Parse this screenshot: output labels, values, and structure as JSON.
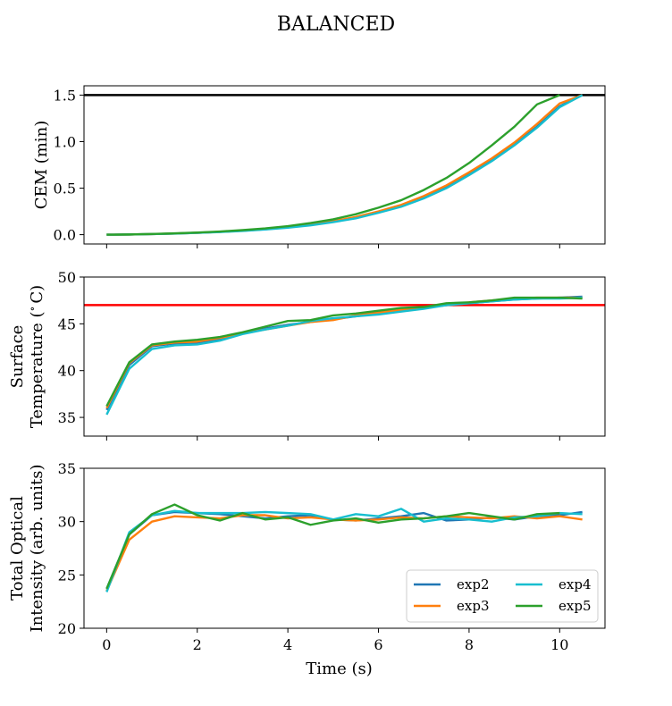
{
  "figure": {
    "title": "BALANCED"
  },
  "chart_data": [
    {
      "type": "line",
      "ylabel": "CEM (min)",
      "xlim": [
        -0.5,
        11
      ],
      "ylim": [
        -0.1,
        1.6
      ],
      "yticks": [
        0.0,
        0.5,
        1.0,
        1.5
      ],
      "ytick_labels": [
        "0.0",
        "0.5",
        "1.0",
        "1.5"
      ],
      "xticks": [
        0,
        2,
        4,
        6,
        8,
        10
      ],
      "grid": false,
      "hline": {
        "y": 1.5,
        "color": "#000000"
      },
      "series": [
        {
          "name": "exp2",
          "color": "#1f77b4",
          "x": [
            0,
            0.5,
            1,
            1.5,
            2,
            2.5,
            3,
            3.5,
            4,
            4.5,
            5,
            5.5,
            6,
            6.5,
            7,
            7.5,
            8,
            8.5,
            9,
            9.5,
            10,
            10.5
          ],
          "y": [
            0,
            0.002,
            0.006,
            0.012,
            0.02,
            0.03,
            0.042,
            0.058,
            0.08,
            0.105,
            0.14,
            0.18,
            0.24,
            0.31,
            0.4,
            0.51,
            0.65,
            0.8,
            0.97,
            1.16,
            1.38,
            1.5
          ]
        },
        {
          "name": "exp3",
          "color": "#ff7f0e",
          "x": [
            0,
            0.5,
            1,
            1.5,
            2,
            2.5,
            3,
            3.5,
            4,
            4.5,
            5,
            5.5,
            6,
            6.5,
            7,
            7.5,
            8,
            8.5,
            9,
            9.5,
            10,
            10.5
          ],
          "y": [
            0,
            0.002,
            0.006,
            0.012,
            0.02,
            0.03,
            0.043,
            0.06,
            0.082,
            0.11,
            0.145,
            0.19,
            0.25,
            0.32,
            0.415,
            0.53,
            0.67,
            0.82,
            0.99,
            1.19,
            1.41,
            1.5
          ]
        },
        {
          "name": "exp4",
          "color": "#17becf",
          "x": [
            0,
            0.5,
            1,
            1.5,
            2,
            2.5,
            3,
            3.5,
            4,
            4.5,
            5,
            5.5,
            6,
            6.5,
            7,
            7.5,
            8,
            8.5,
            9,
            9.5,
            10,
            10.5
          ],
          "y": [
            0,
            0.002,
            0.006,
            0.011,
            0.019,
            0.028,
            0.04,
            0.055,
            0.075,
            0.1,
            0.135,
            0.175,
            0.235,
            0.3,
            0.39,
            0.5,
            0.64,
            0.79,
            0.96,
            1.15,
            1.37,
            1.5
          ]
        },
        {
          "name": "exp5",
          "color": "#2ca02c",
          "x": [
            0,
            0.5,
            1,
            1.5,
            2,
            2.5,
            3,
            3.5,
            4,
            4.5,
            5,
            5.5,
            6,
            6.5,
            7,
            7.5,
            8,
            8.5,
            9,
            9.5,
            10
          ],
          "y": [
            0,
            0.002,
            0.007,
            0.014,
            0.023,
            0.034,
            0.049,
            0.067,
            0.092,
            0.125,
            0.165,
            0.22,
            0.29,
            0.37,
            0.48,
            0.61,
            0.77,
            0.96,
            1.16,
            1.4,
            1.5
          ]
        }
      ]
    },
    {
      "type": "line",
      "ylabel": "Surface\nTemperature ($^\\circ$C)",
      "xlim": [
        -0.5,
        11
      ],
      "ylim": [
        33,
        50
      ],
      "yticks": [
        35,
        40,
        45,
        50
      ],
      "ytick_labels": [
        "35",
        "40",
        "45",
        "50"
      ],
      "xticks": [
        0,
        2,
        4,
        6,
        8,
        10
      ],
      "grid": false,
      "hline": {
        "y": 47,
        "color": "#ff0000"
      },
      "series": [
        {
          "name": "exp2",
          "color": "#1f77b4",
          "x": [
            0,
            0.5,
            1,
            1.5,
            2,
            2.5,
            3,
            3.5,
            4,
            4.5,
            5,
            5.5,
            6,
            6.5,
            7,
            7.5,
            8,
            8.5,
            9,
            9.5,
            10,
            10.5
          ],
          "y": [
            35.8,
            40.6,
            42.6,
            42.9,
            43.0,
            43.4,
            44.0,
            44.5,
            44.9,
            45.2,
            45.5,
            45.8,
            46.1,
            46.4,
            46.7,
            47.0,
            47.2,
            47.4,
            47.6,
            47.7,
            47.8,
            47.9
          ]
        },
        {
          "name": "exp3",
          "color": "#ff7f0e",
          "x": [
            0,
            0.5,
            1,
            1.5,
            2,
            2.5,
            3,
            3.5,
            4,
            4.5,
            5,
            5.5,
            6,
            6.5,
            7,
            7.5,
            8,
            8.5,
            9,
            9.5,
            10,
            10.5
          ],
          "y": [
            36.0,
            40.8,
            42.7,
            43.0,
            43.1,
            43.5,
            44.0,
            44.4,
            44.8,
            45.2,
            45.4,
            45.9,
            46.2,
            46.5,
            46.8,
            47.0,
            47.3,
            47.5,
            47.7,
            47.8,
            47.8,
            47.8
          ]
        },
        {
          "name": "exp4",
          "color": "#17becf",
          "x": [
            0,
            0.5,
            1,
            1.5,
            2,
            2.5,
            3,
            3.5,
            4,
            4.5,
            5,
            5.5,
            6,
            6.5,
            7,
            7.5,
            8,
            8.5,
            9,
            9.5,
            10,
            10.5
          ],
          "y": [
            35.3,
            40.2,
            42.3,
            42.7,
            42.8,
            43.2,
            43.9,
            44.4,
            44.8,
            45.3,
            45.6,
            45.8,
            46.0,
            46.3,
            46.6,
            47.0,
            47.2,
            47.4,
            47.6,
            47.7,
            47.7,
            47.8
          ]
        },
        {
          "name": "exp5",
          "color": "#2ca02c",
          "x": [
            0,
            0.5,
            1,
            1.5,
            2,
            2.5,
            3,
            3.5,
            4,
            4.5,
            5,
            5.5,
            6,
            6.5,
            7,
            7.5,
            8,
            8.5,
            9,
            9.5,
            10,
            10.5
          ],
          "y": [
            36.2,
            40.9,
            42.8,
            43.1,
            43.3,
            43.6,
            44.1,
            44.7,
            45.3,
            45.4,
            45.9,
            46.1,
            46.4,
            46.7,
            46.8,
            47.2,
            47.3,
            47.5,
            47.8,
            47.8,
            47.8,
            47.7
          ]
        }
      ]
    },
    {
      "type": "line",
      "ylabel": "Total Optical\nIntensity (arb. units)",
      "xlabel": "Time (s)",
      "xlim": [
        -0.5,
        11
      ],
      "ylim": [
        20,
        35
      ],
      "yticks": [
        20,
        25,
        30,
        35
      ],
      "ytick_labels": [
        "20",
        "25",
        "30",
        "35"
      ],
      "xticks": [
        0,
        2,
        4,
        6,
        8,
        10
      ],
      "xtick_labels": [
        "0",
        "2",
        "4",
        "6",
        "8",
        "10"
      ],
      "grid": false,
      "legend": {
        "placement": "lower-right",
        "columns": 2
      },
      "series": [
        {
          "name": "exp2",
          "color": "#1f77b4",
          "x": [
            0,
            0.5,
            1,
            1.5,
            2,
            2.5,
            3,
            3.5,
            4,
            4.5,
            5,
            5.5,
            6,
            6.5,
            7,
            7.5,
            8,
            8.5,
            9,
            9.5,
            10,
            10.5
          ],
          "y": [
            23.7,
            28.8,
            30.6,
            30.9,
            30.8,
            30.7,
            30.5,
            30.3,
            30.5,
            30.6,
            30.2,
            30.1,
            30.3,
            30.5,
            30.8,
            30.1,
            30.2,
            30.4,
            30.2,
            30.5,
            30.6,
            30.9
          ]
        },
        {
          "name": "exp3",
          "color": "#ff7f0e",
          "x": [
            0,
            0.5,
            1,
            1.5,
            2,
            2.5,
            3,
            3.5,
            4,
            4.5,
            5,
            5.5,
            6,
            6.5,
            7,
            7.5,
            8,
            8.5,
            9,
            9.5,
            10,
            10.5
          ],
          "y": [
            23.5,
            28.3,
            30.0,
            30.5,
            30.4,
            30.3,
            30.6,
            30.6,
            30.3,
            30.4,
            30.2,
            30.1,
            30.2,
            30.4,
            30.3,
            30.5,
            30.4,
            30.3,
            30.5,
            30.3,
            30.5,
            30.2
          ]
        },
        {
          "name": "exp4",
          "color": "#17becf",
          "x": [
            0,
            0.5,
            1,
            1.5,
            2,
            2.5,
            3,
            3.5,
            4,
            4.5,
            5,
            5.5,
            6,
            6.5,
            7,
            7.5,
            8,
            8.5,
            9,
            9.5,
            10,
            10.5
          ],
          "y": [
            23.4,
            29.0,
            30.6,
            31.0,
            30.8,
            30.8,
            30.8,
            30.9,
            30.8,
            30.7,
            30.2,
            30.7,
            30.5,
            31.2,
            30.0,
            30.3,
            30.2,
            30.0,
            30.4,
            30.5,
            30.8,
            30.7
          ]
        },
        {
          "name": "exp5",
          "color": "#2ca02c",
          "x": [
            0,
            0.5,
            1,
            1.5,
            2,
            2.5,
            3,
            3.5,
            4,
            4.5,
            5,
            5.5,
            6,
            6.5,
            7,
            7.5,
            8,
            8.5,
            9,
            9.5,
            10
          ],
          "y": [
            23.7,
            28.8,
            30.7,
            31.6,
            30.6,
            30.1,
            30.8,
            30.2,
            30.4,
            29.7,
            30.1,
            30.3,
            29.9,
            30.2,
            30.3,
            30.5,
            30.8,
            30.5,
            30.2,
            30.7,
            30.8
          ]
        }
      ]
    }
  ]
}
